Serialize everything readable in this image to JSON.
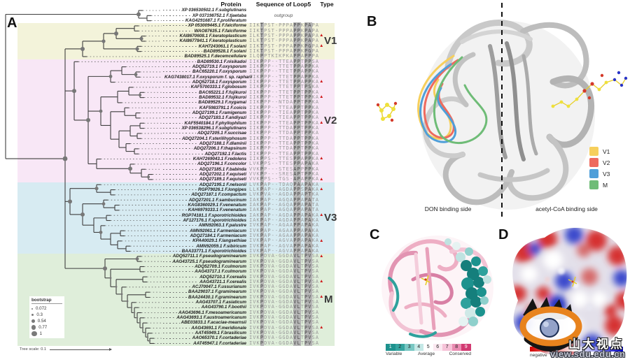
{
  "panelA": {
    "label": "A",
    "columns": {
      "protein": "Protein",
      "sequence": "Sequence of Loop5",
      "type": "Type"
    },
    "bootstrap_legend": {
      "title": "bootstrap",
      "values": [
        "0.072",
        "0.3",
        "0.54",
        "0.77",
        "1"
      ]
    },
    "tree_scale": "Tree scale: 0.1",
    "triangle_color": "#cf1c1c",
    "conserved_columns": [
      3,
      12,
      13,
      15,
      16
    ],
    "zones": [
      {
        "name": "V1",
        "color": "#f3f3da",
        "start": 4,
        "end": 10
      },
      {
        "name": "V2",
        "color": "#f8e7f6",
        "start": 11,
        "end": 34
      },
      {
        "name": "V3",
        "color": "#d7ebf2",
        "start": 35,
        "end": 48
      },
      {
        "name": "M",
        "color": "#dfeeda",
        "start": 49,
        "end": 66
      }
    ],
    "taxa": [
      {
        "p": "XP 036530502.1 F.subglutinans",
        "s": "",
        "m": false
      },
      {
        "p": "XP 037198752.1 F.tjaetaba",
        "s": "",
        "note": "outgroup",
        "m": false
      },
      {
        "p": "KAG4291687.1 F.proliferatum",
        "s": "",
        "m": false
      },
      {
        "p": "XP 053009445.1 F.falciforme",
        "s": "IIKTPST-PPPAPPKPAPA",
        "m": false
      },
      {
        "p": "WAO87635.1 F.falciforme",
        "s": "IIKTPST-PPPAPPKPAPA",
        "m": false
      },
      {
        "p": "KAI8670608.1 F.keratoplasticum",
        "s": "ILKTPST-PPPAPPKPAPA",
        "m": true
      },
      {
        "p": "KAI8677841.1 F.keratoplasticum",
        "s": "ILKTPST-PPPAPPKPAPA",
        "m": false
      },
      {
        "p": "KAH7243061.1 F.solani",
        "s": "IIKTPST-PPPAPPKPGPA",
        "m": true
      },
      {
        "p": "BAD89528.1 F.solani",
        "s": "IIKTPST-PPPAPPKPGPA",
        "m": false
      },
      {
        "p": "BAD89525.1 F.decemcellulare",
        "s": "ILQPPTKIKPKAPPAPPPA",
        "m": false
      },
      {
        "p": "BAD89530.1 F.nisikadoi",
        "s": "IIKPPP--TTEAPPTPPSA",
        "m": false
      },
      {
        "p": "ADQ52719.1 F.oxysporum",
        "s": "IIKPPP--TTETPPAPPKA",
        "m": false
      },
      {
        "p": "BAC65220.1 F.oxysporum",
        "s": "IIKPPP--TTETPPAPPKA",
        "m": false
      },
      {
        "p": "KAG7438017.1 F.oxysporum f. sp. raphani",
        "s": "IIKPPP--TTETPPAPPKA",
        "m": false
      },
      {
        "p": "ADQ52718.1 F.oxysporum",
        "s": "IIKPPP--TTETPPAPPKA",
        "m": true
      },
      {
        "p": "KAF5700333.1 F.globosum",
        "s": "IIKPPP--TTETPPTPSKA",
        "m": false
      },
      {
        "p": "BAC65221.1 F.fujikuroi",
        "s": "IIKPPP--TTETPPTPPKA",
        "m": false
      },
      {
        "p": "BAD89532.1 F.fujikuroi",
        "s": "IIKPPP--TTETPPTPPKA",
        "m": true
      },
      {
        "p": "BAD89529.1 F.nygamai",
        "s": "IIKPPP--NTDAPPTPPKA",
        "m": false
      },
      {
        "p": "KAF5983791.1 F.coicis",
        "s": "IIKPPP--TTEAPPTPPKA",
        "m": false
      },
      {
        "p": "ADQ27199.1 F.ramigenum",
        "s": "IIKPPP--TIEAPPTPPKA",
        "m": false
      },
      {
        "p": "ADQ27183.1 F.andiyazi",
        "s": "IIKPPP--TIEAPPTPPKA",
        "m": false
      },
      {
        "p": "KAF5540184.1 F.phyllophilum",
        "s": "IIKPPP--TTEAPPTPPKA",
        "m": true
      },
      {
        "p": "XP 036538296.1 F.subglutinans",
        "s": "IIKPPP--TTDAPPTPPKA",
        "m": false
      },
      {
        "p": "ADQ27205.1 F.succisae",
        "s": "IIKPPP--TTDAPPTPPKA",
        "m": false
      },
      {
        "p": "ADQ27204.1 F.sterilihyphosum",
        "s": "IIKPPP--TTDAPPTPPKA",
        "m": false
      },
      {
        "p": "ADQ27188.1 F.dlaminii",
        "s": "IIKPPP--TTEAPPTPPKA",
        "m": false
      },
      {
        "p": "ADQ27206.1 F.thapsinum",
        "s": "IIKPPP--TTDAPPTPPKA",
        "m": false
      },
      {
        "p": "ADQ27192.1 F.lactis",
        "s": "IIKPPP--TTEAPPTPPKA",
        "m": false
      },
      {
        "p": "KAH7269043.1 F.redolens",
        "s": "IIKPPS--TTESPPAPPKA",
        "m": true
      },
      {
        "p": "ADQ27196.1 F.concolor",
        "s": "LVKPPS--TTESPPAPAKA",
        "m": false
      },
      {
        "p": "ADQ27185.1 F.babinda",
        "s": "VVKPP---STESAPPPPKA",
        "m": false
      },
      {
        "p": "ADQ27202.1 F.equiseti",
        "s": "VVKPP---SRESAPTPPKA",
        "m": false
      },
      {
        "p": "ADQ27189.1 F.equiseti",
        "s": "VVKPPS--TGS-APAPPKA",
        "m": true
      },
      {
        "p": "ADQ27195.1 F.nelsonii",
        "s": "LVKPAP--TDAQPAAPAKA",
        "m": false
      },
      {
        "p": "RGP79026.1 F.longipes",
        "s": "LLKPAP--AGDAPPSPAKA",
        "m": true
      },
      {
        "p": "ADQ27187.1 F.compactum",
        "s": "LVKPVA--AGDAPPAPTKA",
        "m": false
      },
      {
        "p": "ADQ27201.1 F.sambucinum",
        "s": "IAKPAP--AGQAPPAPATA",
        "m": false
      },
      {
        "p": "KAG8360029.1 F.venenatum",
        "s": "IAKPAP--AGQAPPAPATA",
        "m": false
      },
      {
        "p": "KAH6979333.1 F.venenatum",
        "s": "IAKPAP--AGQAPPAPATA",
        "m": false
      },
      {
        "p": "RGP74181.1 F.sporotrichioides",
        "s": "IAKPAP--AGDAPPAPAKA",
        "m": true
      },
      {
        "p": "AF127176.1 F.sporotrichioides",
        "s": "IAKPAP--AGDAPPAPAKA",
        "m": false
      },
      {
        "p": "AMN92063.1 F.palustre",
        "s": "IVKPAP--AGAAPPAPAKA",
        "m": false
      },
      {
        "p": "AMN92061.1 F.armeniacum",
        "s": "IVKPAP--AGAAPPAPAKA",
        "m": false
      },
      {
        "p": "ADQ27184.1 F.armeniacum",
        "s": "IVKPAP--AGAAPPAPAKA",
        "m": false
      },
      {
        "p": "KPA40029.1 F.langsethiae",
        "s": "IVKPAP--AGVAPPAPAKA",
        "m": true
      },
      {
        "p": "AMN92059.1 F.sibiricum",
        "s": "IVKPAP--AGVAPPAPAKA",
        "m": false
      },
      {
        "p": "BAA33771.1 F.sporotrichioides",
        "s": "IVKPAP--AGVAPPAPAKA",
        "m": false
      },
      {
        "p": "ADQ52711.1 F.pseudograminearum",
        "s": "IVKPDVA-GGDAVLTPVSA",
        "m": true
      },
      {
        "p": "AAG43725.1 F.pseudograminearum",
        "s": "IVKPDVA-GGDAVLTPVSA",
        "m": false
      },
      {
        "p": "ADQ52709.1 F.culmorum",
        "s": "IVKPDVA-GGDAVLTPVSA",
        "m": false
      },
      {
        "p": "AAG43717.1 F.culmorum",
        "s": "IVKPDVA-GGDAVLTPVSA",
        "m": false
      },
      {
        "p": "ADQ52710.1 F.cerealis",
        "s": "IVKPDVA-GGDAVLTPVSA",
        "m": false
      },
      {
        "p": "AAG43721.1 F.cerealis",
        "s": "IVKPDVA-GGDAVLTPVSA",
        "m": true
      },
      {
        "p": "ACJ70047.1 F.ussurianum",
        "s": "IVKPDVA-GGDAVLTPVSA",
        "m": false
      },
      {
        "p": "BAA29037.1 F.graminearum",
        "s": "IVKPDVA-GGDAVLTPVSA",
        "m": false
      },
      {
        "p": "BAA24430.1 F.graminearum",
        "s": "IVKPDVA-GGDAVLTPVSA",
        "m": true
      },
      {
        "p": "AAG43707.1 F.asiaticum",
        "s": "IVKPDVA-GGDAVLTPVSA",
        "m": false
      },
      {
        "p": "AAG43790.1 F.boothii",
        "s": "IVKPDVA-GGDAVLTPVSA",
        "m": false
      },
      {
        "p": "AAG43696.1 F.mesoamericanum",
        "s": "IVKPDVA-GGDAVLTPVSA",
        "m": false
      },
      {
        "p": "AAG43693.1 F.austroamericanum",
        "s": "IVKPDVA-GGDAVLTPVSA",
        "m": false
      },
      {
        "p": "ABE03833.1 F.acaciae-mearnsii",
        "s": "IVKPDVA-GGDAVLTPVSA",
        "m": false
      },
      {
        "p": "AAG43691.1 F.meridionale",
        "s": "IVKPDVA-GGDAVLTPVSA",
        "m": true
      },
      {
        "p": "AAT45949.1 F.brasilicum",
        "s": "IVKPDVA-GGDAVLTPVSA",
        "m": false
      },
      {
        "p": "AAO65370.1 F.cortaderiae",
        "s": "IVKPDVA-GGDAVLTPVSA",
        "m": false
      },
      {
        "p": "AAT45947.1 F.cortaderiae",
        "s": "IVKPDVA-GGDAVLTPVSA",
        "m": false
      }
    ]
  },
  "panelB": {
    "label": "B",
    "left_caption": "DON binding side",
    "right_caption": "acetyl-CoA binding side",
    "legend": [
      {
        "label": "V1",
        "color": "#f6cf5c"
      },
      {
        "label": "V2",
        "color": "#ee6a5e"
      },
      {
        "label": "V3",
        "color": "#4f9fd9"
      },
      {
        "label": "M",
        "color": "#6fbc77"
      }
    ]
  },
  "panelC": {
    "label": "C",
    "colorbar": {
      "cells": [
        {
          "label": "1",
          "color": "#1d928e"
        },
        {
          "label": "2",
          "color": "#35a5a0"
        },
        {
          "label": "3",
          "color": "#79c7c3"
        },
        {
          "label": "4",
          "color": "#c5e8e6"
        },
        {
          "label": "5",
          "color": "#ffffff"
        },
        {
          "label": "6",
          "color": "#fbe9f1"
        },
        {
          "label": "7",
          "color": "#f6c3d8"
        },
        {
          "label": "8",
          "color": "#ea8cb2"
        },
        {
          "label": "9",
          "color": "#d23a72"
        }
      ],
      "left_label": "Variable",
      "mid_label": "Average",
      "right_label": "Conserved"
    }
  },
  "panelD": {
    "label": "D",
    "colorbar_negative_label": "negative"
  },
  "watermark": {
    "text": "山大视点",
    "url": "view.sdu.edu.cn"
  }
}
